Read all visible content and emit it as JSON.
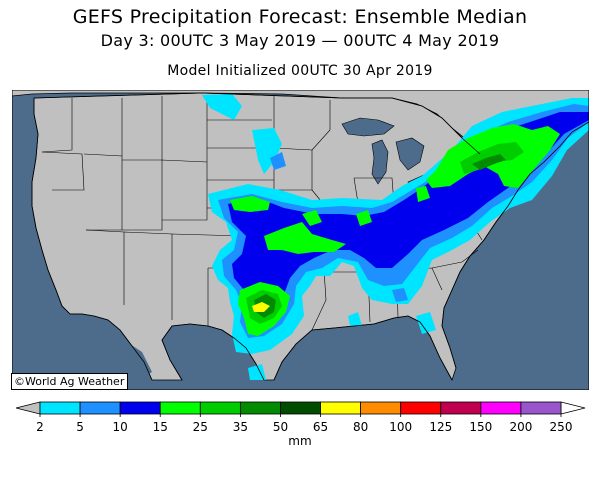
{
  "title": "GEFS Precipitation Forecast: Ensemble Median",
  "subtitle": "Day 3: 00UTC 3 May 2019 — 00UTC 4 May 2019",
  "model_line": "Model Initialized 00UTC 30 Apr 2019",
  "credit": "©World Ag Weather",
  "colors": {
    "ocean": "#4d6c8c",
    "land": "#c0c0c0",
    "lake": "#4d6c8c",
    "border": "#000000"
  },
  "legend": {
    "units": "mm",
    "ticks": [
      "2",
      "5",
      "10",
      "15",
      "25",
      "35",
      "50",
      "65",
      "80",
      "100",
      "125",
      "150",
      "200",
      "250"
    ],
    "colors": [
      "#00e5ff",
      "#1e90ff",
      "#0000ee",
      "#00ff00",
      "#00cd00",
      "#008b00",
      "#004d00",
      "#ffff00",
      "#ff8c00",
      "#ff0000",
      "#c0004f",
      "#ff00ff",
      "#9955cc"
    ],
    "under_color": "#c0c0c0",
    "over_color": "#ffffff"
  }
}
